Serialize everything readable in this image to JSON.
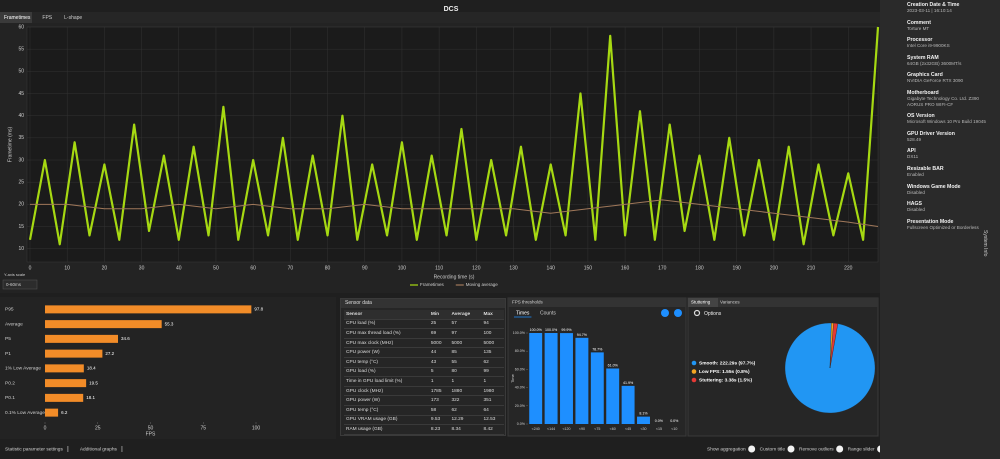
{
  "tabs": [
    "Frametimes",
    "FPS",
    "L-shape"
  ],
  "title": "DCS",
  "y_axis_scale": {
    "label": "Y-axis scale",
    "value": "0-60ms"
  },
  "chart_data": [
    {
      "type": "line",
      "x_label": "Recording time (s)",
      "y_label": "Frametime (ms)",
      "xlim": [
        0,
        228
      ],
      "xticks": [
        0,
        10,
        20,
        30,
        40,
        50,
        60,
        70,
        80,
        90,
        100,
        110,
        120,
        130,
        140,
        150,
        160,
        170,
        180,
        190,
        200,
        210,
        220
      ],
      "ylim": [
        7,
        60
      ],
      "yticks": [
        10,
        15,
        20,
        25,
        30,
        35,
        40,
        45,
        50,
        55,
        60
      ],
      "grid": true,
      "legend": "bottom",
      "series": [
        {
          "name": "Frametimes",
          "color": "#a6d912",
          "x": [
            0,
            4,
            8,
            12,
            16,
            20,
            24,
            28,
            32,
            36,
            40,
            44,
            48,
            52,
            56,
            60,
            64,
            68,
            72,
            76,
            80,
            84,
            88,
            92,
            96,
            100,
            104,
            108,
            112,
            116,
            120,
            124,
            128,
            132,
            136,
            140,
            144,
            148,
            152,
            156,
            160,
            164,
            168,
            172,
            176,
            180,
            184,
            188,
            192,
            196,
            200,
            204,
            208,
            212,
            216,
            220,
            224,
            228
          ],
          "values": [
            12,
            30,
            11,
            34,
            13,
            29,
            12,
            38,
            14,
            31,
            12,
            33,
            13,
            42,
            12,
            30,
            13,
            35,
            12,
            31,
            13,
            40,
            12,
            29,
            13,
            34,
            12,
            31,
            13,
            37,
            12,
            30,
            13,
            33,
            12,
            29,
            13,
            45,
            12,
            58,
            13,
            41,
            12,
            38,
            14,
            31,
            12,
            35,
            13,
            30,
            12,
            33,
            11,
            29,
            13,
            27,
            12,
            60
          ]
        },
        {
          "name": "Moving average",
          "color": "#a0785a",
          "x": [
            0,
            10,
            20,
            30,
            40,
            50,
            60,
            70,
            80,
            90,
            100,
            110,
            120,
            130,
            140,
            150,
            160,
            170,
            180,
            190,
            200,
            210,
            220,
            228
          ],
          "values": [
            20,
            20,
            19,
            19,
            20,
            19,
            20,
            19,
            19,
            20,
            19,
            19,
            19,
            19,
            18,
            19,
            20,
            21,
            20,
            19,
            18,
            17,
            16,
            15
          ]
        }
      ]
    },
    {
      "type": "bar",
      "orientation": "horizontal",
      "categories": [
        "P95",
        "Average",
        "P5",
        "P1",
        "1% Low Average",
        "P0.2",
        "P0.1",
        "0.1% Low Average"
      ],
      "values": [
        97.8,
        55.3,
        34.6,
        27.2,
        18.4,
        19.5,
        18.1,
        6.2
      ],
      "color": "#f28c28",
      "xlim": [
        0,
        100
      ],
      "xticks": [
        0,
        25,
        50,
        75,
        100
      ],
      "x_label": "FPS"
    },
    {
      "type": "bar",
      "title": "FPS thresholds",
      "tabs": [
        "Times",
        "Counts"
      ],
      "y_label": "Time",
      "categories": [
        "<240",
        "<144",
        "<120",
        "<90",
        "<75",
        "<60",
        "<45",
        "<30",
        "<15",
        "<10"
      ],
      "values": [
        100,
        100,
        99.9,
        94.7,
        78.7,
        61,
        41.9,
        8.1,
        0,
        0
      ],
      "value_labels": [
        "100.0%",
        "100.0%",
        "99.9%",
        "94.7%",
        "78.7%",
        "61.0%",
        "41.9%",
        "8.1%",
        "0.0%",
        "0.0%"
      ],
      "color": "#1e8fff",
      "ylim": [
        0,
        100
      ],
      "yticks": [
        {
          "value": 0,
          "label": "0.0%"
        },
        {
          "value": 20,
          "label": "20.0%"
        },
        {
          "value": 40,
          "label": "40.0%"
        },
        {
          "value": 60,
          "label": "60.0%"
        },
        {
          "value": 80,
          "label": "80.0%"
        },
        {
          "value": 100,
          "label": "100.0%"
        }
      ]
    },
    {
      "type": "pie",
      "tabs": [
        "Stuttering",
        "Variances"
      ],
      "options": "Options",
      "categories": [
        "Smooth: 222.29s (97.7%)",
        "Low FPS: 1.55s (0.8%)",
        "Stuttering: 3.38s (1.5%)"
      ],
      "values": [
        97.7,
        0.8,
        1.5
      ],
      "colors": [
        "#2196f3",
        "#f5a623",
        "#e53935"
      ]
    }
  ],
  "sensor_data": {
    "title": "Sensor data",
    "columns": [
      "Sensor",
      "Min",
      "Average",
      "Max"
    ],
    "rows": [
      [
        "CPU load (%)",
        25,
        57,
        94
      ],
      [
        "CPU max thread load (%)",
        69,
        97,
        100
      ],
      [
        "CPU max clock (MHz)",
        5000,
        5000,
        5000
      ],
      [
        "CPU power (W)",
        44,
        85,
        135
      ],
      [
        "CPU temp (°C)",
        43,
        55,
        62
      ],
      [
        "GPU load (%)",
        5,
        80,
        99
      ],
      [
        "Time in GPU load limit (%)",
        1,
        1,
        1
      ],
      [
        "GPU clock (MHz)",
        1785,
        1880,
        1980
      ],
      [
        "GPU power (W)",
        173,
        322,
        351
      ],
      [
        "GPU temp (°C)",
        58,
        62,
        64
      ],
      [
        "GPU VRAM usage (GB)",
        9.53,
        12.29,
        12.53
      ],
      [
        "RAM usage (GB)",
        8.23,
        8.34,
        8.42
      ]
    ]
  },
  "system_info": {
    "title": "System Info",
    "items": [
      {
        "label": "Creation Date & Time",
        "value": "2023-03-11  |  16:10:14"
      },
      {
        "label": "Comment",
        "value": "Torture MT"
      },
      {
        "label": "Processor",
        "value": "Intel Core i9-9900KS"
      },
      {
        "label": "System RAM",
        "value": "64GB (2x32GB) 3600MT/s"
      },
      {
        "label": "Graphics Card",
        "value": "NVIDIA GeForce RTX 3090"
      },
      {
        "label": "Motherboard",
        "value": "Gigabyte Technology Co. Ltd. Z390 AORUS PRO WIFI-CF"
      },
      {
        "label": "OS Version",
        "value": "Microsoft Windows 10 Pro Build 19045"
      },
      {
        "label": "GPU Driver Version",
        "value": "528.49"
      },
      {
        "label": "API",
        "value": "DX11"
      },
      {
        "label": "Resizable BAR",
        "value": "Enabled"
      },
      {
        "label": "Windows Game Mode",
        "value": "Disabled"
      },
      {
        "label": "HAGS",
        "value": "Disabled"
      },
      {
        "label": "Presentation Mode",
        "value": "Fullscreen Optimized or Borderless"
      }
    ]
  },
  "footer": {
    "left": [
      "Statistic parameter settings",
      "Additional graphs"
    ],
    "toggles": [
      "Show aggregation",
      "Custom title",
      "Remove outliers",
      "Range slider"
    ]
  }
}
